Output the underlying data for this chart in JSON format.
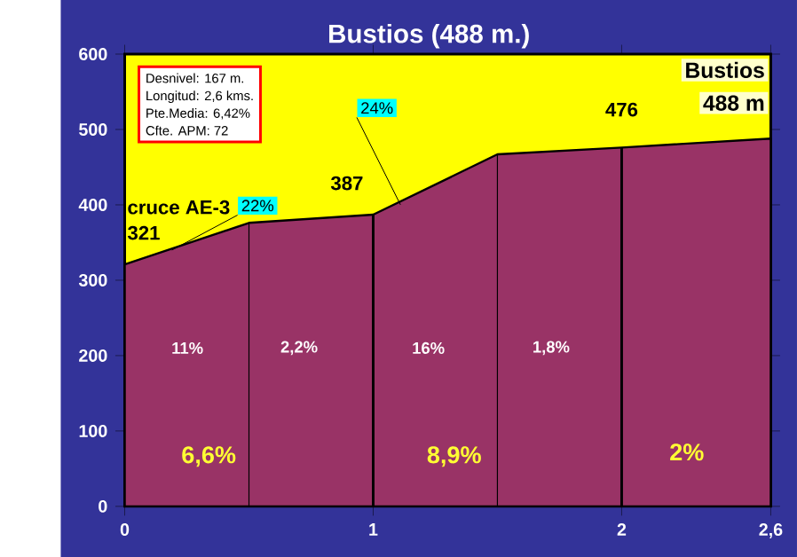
{
  "chart_data": {
    "type": "area",
    "title": "Bustios (488 m.)",
    "x": [
      0,
      0.5,
      1,
      1.5,
      2,
      2.6
    ],
    "series": [
      {
        "color": "#993366",
        "values": [
          321,
          376,
          387,
          467,
          476,
          488
        ]
      }
    ],
    "xlim": [
      0,
      2.6
    ],
    "xticks": [
      0,
      1,
      2,
      {
        "value": 2.6,
        "label": "2,6"
      }
    ],
    "ylim": [
      0,
      600
    ],
    "yticks": [
      0,
      100,
      200,
      300,
      400,
      500,
      600
    ],
    "grid": false,
    "ref_lines": [
      {
        "axis": "x",
        "value": 0.5,
        "color": "#000000"
      },
      {
        "axis": "x",
        "value": 1,
        "color": "#000000"
      },
      {
        "axis": "x",
        "value": 1.5,
        "color": "#000000"
      },
      {
        "axis": "x",
        "value": 2,
        "color": "#000000"
      }
    ],
    "annotations": [
      "Desnivel: 167 m.",
      "Longitud: 2,6 kms.",
      "Pte.Media: 6,42%",
      "Cfte. APM: 72",
      "cruce AE-3",
      "11%",
      "2,2%",
      "16%",
      "1,8%",
      "6,6%",
      "8,9%",
      "2%",
      {
        "text": "321",
        "x": 0,
        "y": 321
      },
      {
        "text": "387",
        "x": 1,
        "y": 387
      },
      {
        "text": "476",
        "x": 2,
        "y": 476
      },
      {
        "text": "Bustios",
        "x": 2.6,
        "y": 488
      },
      {
        "text": "488 m",
        "x": 2.6,
        "y": 488
      },
      {
        "text": "22%",
        "x": 0.19,
        "y": 340
      },
      {
        "text": "24%",
        "x": 1.11,
        "y": 400
      }
    ]
  }
}
